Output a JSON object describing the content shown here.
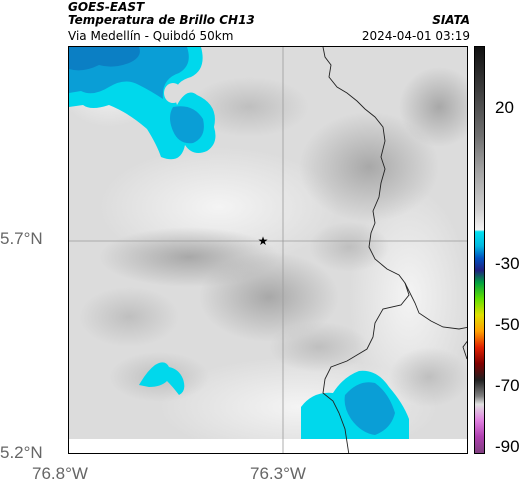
{
  "header": {
    "satellite": "GOES-EAST",
    "product": "Temperatura de Brillo CH13",
    "route": "Via Medellín - Quibdó 50km",
    "brand": "SIATA",
    "datetime": "2024-04-01 03:19"
  },
  "map": {
    "lat_labels": [
      "5.7°N",
      "5.2°N"
    ],
    "lon_labels": [
      "76.8°W",
      "76.3°W"
    ],
    "marker_icon": "star-icon",
    "colors": {
      "cold_cloud": "#00d8ec",
      "colder_cloud": "#0a9ed6",
      "coldest_cloud": "#0b7fc4",
      "grid": "#9a9a9a",
      "border": "#000000"
    }
  },
  "colorbar": {
    "labels": [
      "20",
      "-30",
      "-50",
      "-70",
      "-90"
    ]
  }
}
